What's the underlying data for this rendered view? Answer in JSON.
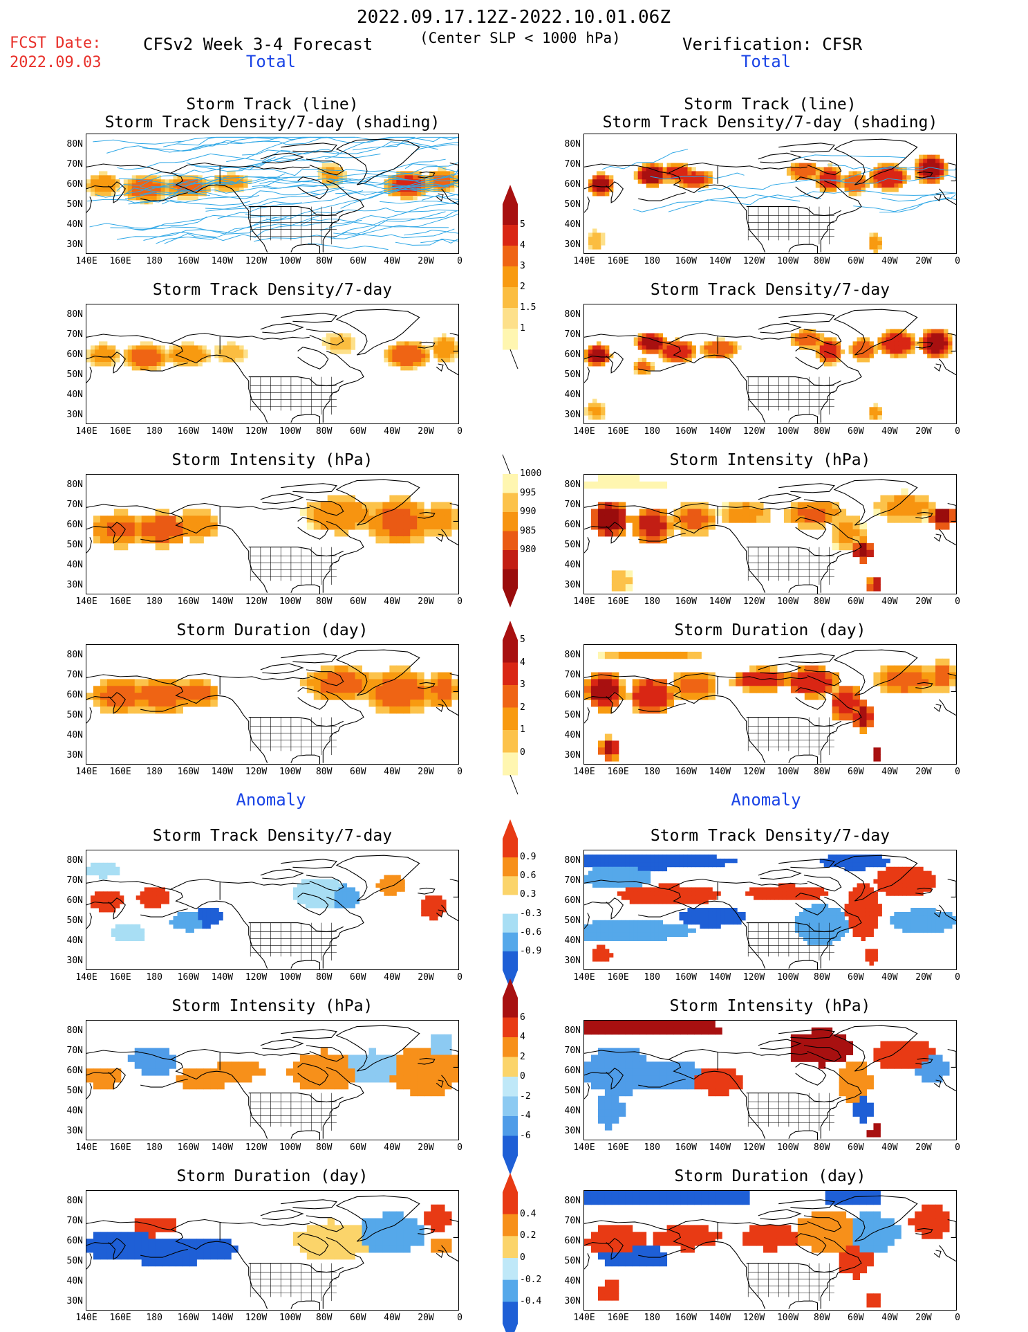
{
  "header": {
    "date_range": "2022.09.17.12Z-2022.10.01.06Z",
    "fcst_label": "FCST Date:",
    "fcst_date": "2022.09.03",
    "forecast_title": "CFSv2 Week 3-4 Forecast",
    "criterion": "(Center SLP < 1000 hPa)",
    "verification": "Verification: CFSR"
  },
  "sections": {
    "total": "Total",
    "anomaly": "Anomaly"
  },
  "colors": {
    "title_red": "#e8302a",
    "section_blue": "#1a44e6",
    "track_line": "#2ea7e6",
    "land_line": "#000000"
  },
  "axes": {
    "lat_labels": [
      "80N",
      "70N",
      "60N",
      "50N",
      "40N",
      "30N"
    ],
    "lon_labels": [
      "140E",
      "160E",
      "180",
      "160W",
      "140W",
      "120W",
      "100W",
      "80W",
      "60W",
      "40W",
      "20W",
      "0"
    ]
  },
  "panels": [
    {
      "id": "fc-track",
      "column": "CFSv2 Week 3-4 Forecast",
      "title": [
        "Storm Track (line)",
        "Storm Track Density/7-day (shading)"
      ],
      "scale": "density",
      "tracks": true
    },
    {
      "id": "ob-track",
      "column": "Verification: CFSR",
      "title": [
        "Storm Track (line)",
        "Storm Track Density/7-day (shading)"
      ],
      "scale": "density",
      "tracks": true
    },
    {
      "id": "fc-density",
      "column": "CFSv2 Week 3-4 Forecast",
      "title": [
        "Storm Track Density/7-day"
      ],
      "scale": "density"
    },
    {
      "id": "ob-density",
      "column": "Verification: CFSR",
      "title": [
        "Storm Track Density/7-day"
      ],
      "scale": "density"
    },
    {
      "id": "fc-intensity",
      "column": "CFSv2 Week 3-4 Forecast",
      "title": [
        "Storm Intensity (hPa)"
      ],
      "scale": "intensity"
    },
    {
      "id": "ob-intensity",
      "column": "Verification: CFSR",
      "title": [
        "Storm Intensity (hPa)"
      ],
      "scale": "intensity"
    },
    {
      "id": "fc-duration",
      "column": "CFSv2 Week 3-4 Forecast",
      "title": [
        "Storm Duration (day)"
      ],
      "scale": "duration"
    },
    {
      "id": "ob-duration",
      "column": "Verification: CFSR",
      "title": [
        "Storm Duration (day)"
      ],
      "scale": "duration"
    },
    {
      "id": "fc-density-anom",
      "column": "CFSv2 Week 3-4 Forecast",
      "title": [
        "Storm Track Density/7-day"
      ],
      "scale": "density_anom"
    },
    {
      "id": "ob-density-anom",
      "column": "Verification: CFSR",
      "title": [
        "Storm Track Density/7-day"
      ],
      "scale": "density_anom"
    },
    {
      "id": "fc-intensity-anom",
      "column": "CFSv2 Week 3-4 Forecast",
      "title": [
        "Storm Intensity (hPa)"
      ],
      "scale": "intensity_anom"
    },
    {
      "id": "ob-intensity-anom",
      "column": "Verification: CFSR",
      "title": [
        "Storm Intensity (hPa)"
      ],
      "scale": "intensity_anom"
    },
    {
      "id": "fc-duration-anom",
      "column": "CFSv2 Week 3-4 Forecast",
      "title": [
        "Storm Duration (day)"
      ],
      "scale": "duration_anom"
    },
    {
      "id": "ob-duration-anom",
      "column": "Verification: CFSR",
      "title": [
        "Storm Duration (day)"
      ],
      "scale": "duration_anom"
    }
  ],
  "colorbars": [
    {
      "id": "density",
      "labels": [
        "1",
        "1.5",
        "2",
        "3",
        "4",
        "5"
      ],
      "colors": [
        "#fff6b0",
        "#fde08a",
        "#fbbd40",
        "#f89a10",
        "#ef6414",
        "#d92614",
        "#a81010"
      ],
      "extend": "max"
    },
    {
      "id": "intensity",
      "labels": [
        "1000",
        "995",
        "990",
        "985",
        "980"
      ],
      "colors": [
        "#fff6b0",
        "#fcc24a",
        "#f79410",
        "#ea5a14",
        "#c21e14",
        "#9a0c0c"
      ],
      "extend": "min"
    },
    {
      "id": "duration",
      "labels": [
        "0",
        "1",
        "2",
        "3",
        "4",
        "5"
      ],
      "colors": [
        "#fff6b0",
        "#fcc24a",
        "#f89a10",
        "#ef6414",
        "#d92614",
        "#a81010"
      ],
      "extend": "max"
    },
    {
      "id": "density_anom",
      "labels": [
        "0.9",
        "0.6",
        "0.3",
        "-0.3",
        "-0.6",
        "-0.9"
      ],
      "colors": [
        "#e83a14",
        "#f7901a",
        "#fbd46a",
        "#ffffff",
        "#a8def4",
        "#55a8ea",
        "#1e5fd6"
      ],
      "extend": "both"
    },
    {
      "id": "intensity_anom",
      "labels": [
        "6",
        "4",
        "2",
        "0",
        "-2",
        "-4",
        "-6"
      ],
      "colors": [
        "#a81010",
        "#e83a14",
        "#f7901a",
        "#fbd46a",
        "#bfe8f8",
        "#8ccaf2",
        "#4f9ce8",
        "#1e5fd6"
      ],
      "extend": "both"
    },
    {
      "id": "duration_anom",
      "labels": [
        "0.4",
        "0.2",
        "0",
        "-0.2",
        "-0.4"
      ],
      "colors": [
        "#e83a14",
        "#f7901a",
        "#fbd46a",
        "#bfe8f8",
        "#55a8ea",
        "#1e5fd6"
      ],
      "extend": "both"
    }
  ]
}
